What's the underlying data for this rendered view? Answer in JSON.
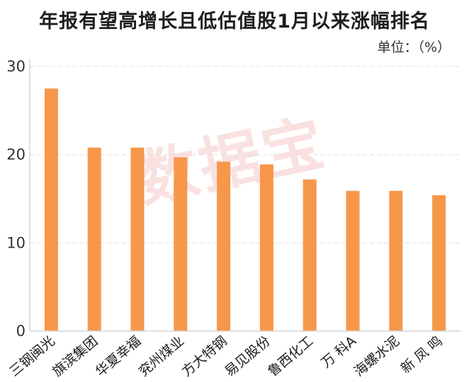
{
  "chart_data": {
    "type": "bar",
    "title": "年报有望高增长且低估值股1月以来涨幅排名",
    "unit_label": "单位：（%）",
    "watermark": "数据宝",
    "categories": [
      "三钢闽光",
      "旗滨集团",
      "华夏幸福",
      "兖州煤业",
      "方大特钢",
      "易见股份",
      "鲁西化工",
      "万 科A",
      "海螺水泥",
      "新 凤 鸣"
    ],
    "values": [
      27.5,
      20.8,
      20.8,
      19.7,
      19.2,
      18.9,
      17.2,
      15.9,
      15.9,
      15.4
    ],
    "ylim": [
      0,
      30
    ],
    "yticks": [
      0,
      10,
      20,
      30
    ],
    "grid": true,
    "bar_color": "#f6974a",
    "axis_color": "#d5d5d5",
    "grid_color": "#e0e0e0"
  }
}
